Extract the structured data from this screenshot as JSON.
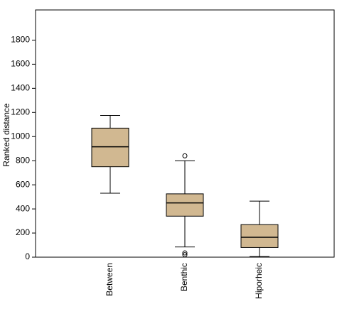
{
  "chart_data": {
    "type": "box",
    "y_label": "Ranked distance",
    "categories": [
      "Between",
      "Benthic",
      "Hiporheic"
    ],
    "whisker_low": [
      530,
      85,
      5
    ],
    "q1": [
      750,
      340,
      80
    ],
    "median": [
      915,
      450,
      165
    ],
    "q3": [
      1070,
      525,
      270
    ],
    "whisker_high": [
      1175,
      800,
      465
    ],
    "outliers": [
      [],
      [
        840,
        20,
        35
      ],
      []
    ],
    "color": "#d1b891",
    "ylim": [
      0,
      2050
    ],
    "yticks": [
      0,
      200,
      400,
      600,
      800,
      1000,
      1200,
      1400,
      1600,
      1800
    ],
    "grid": false
  }
}
